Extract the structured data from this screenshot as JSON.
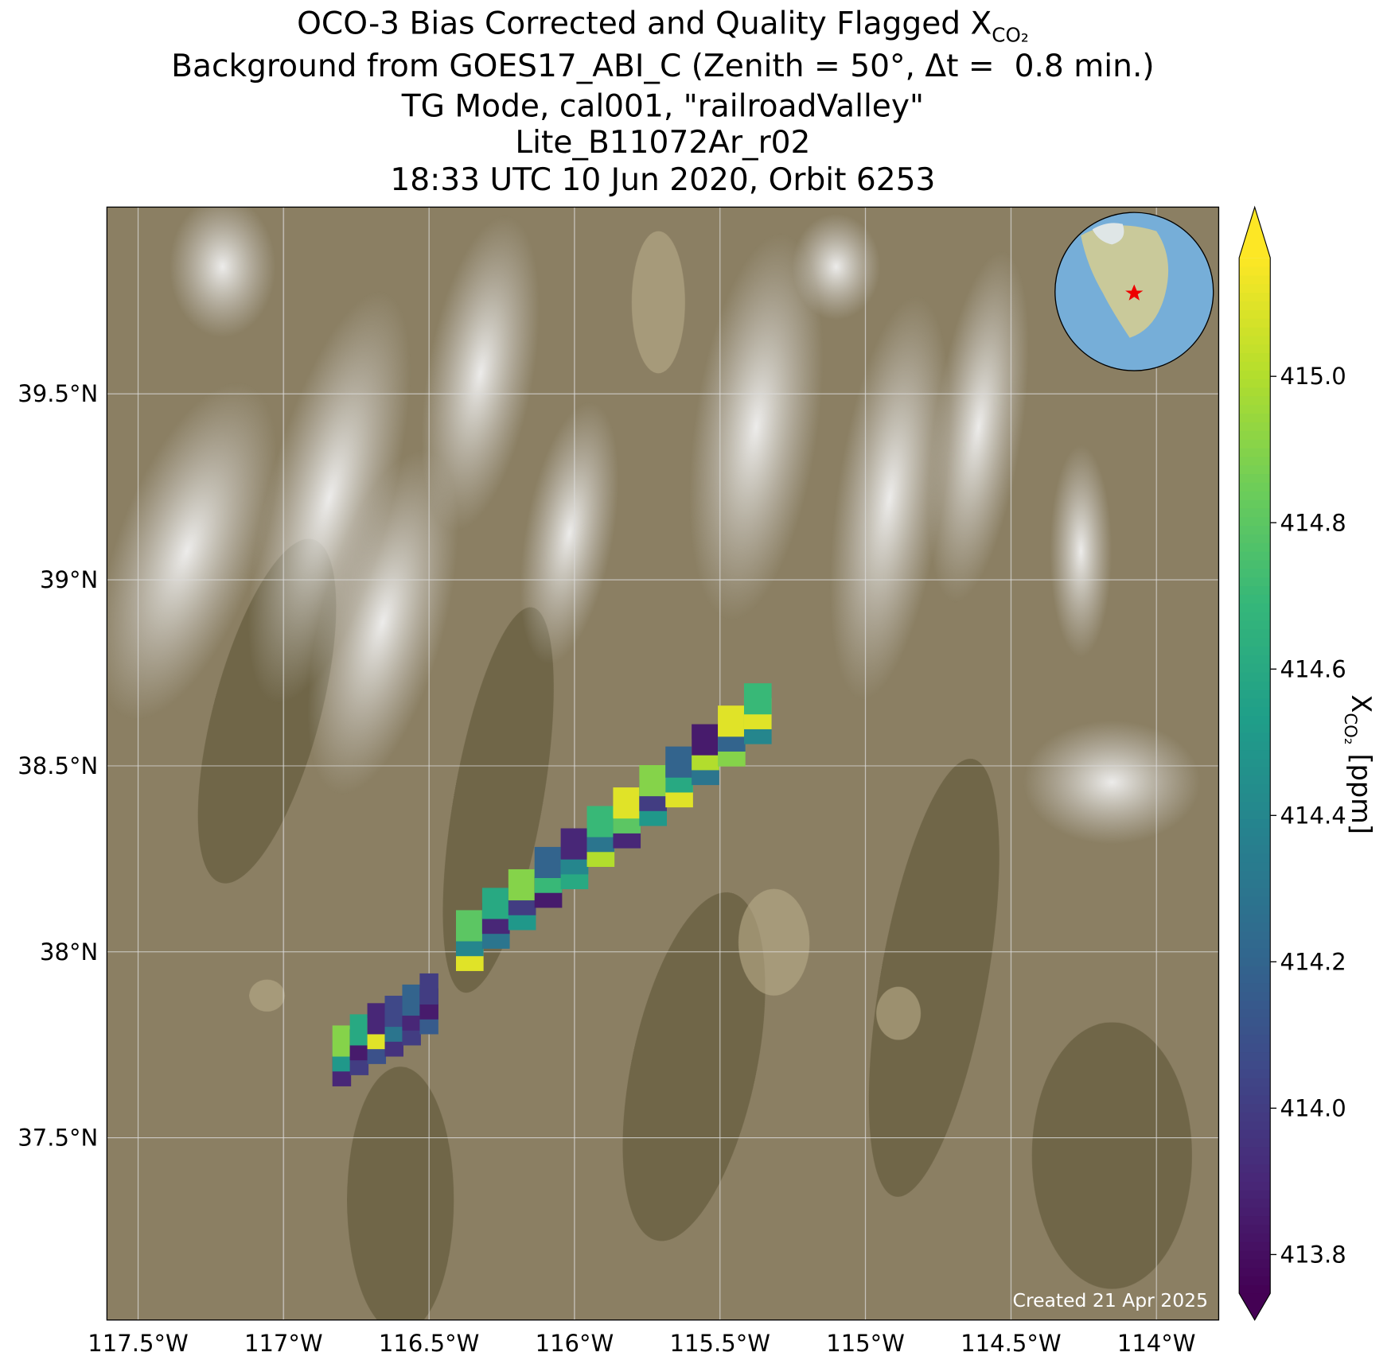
{
  "chart_data": {
    "type": "map",
    "title": [
      "OCO-3 Bias Corrected and Quality Flagged X",
      "Background from GOES17_ABI_C (Zenith = 50°, Δt =  0.8 min.)",
      "TG Mode, cal001, \"railroadValley\"",
      "Lite_B11072Ar_r02",
      "18:33 UTC 10 Jun 2020, Orbit 6253"
    ],
    "title_subscript": "CO₂",
    "xlim": [
      -117.607,
      -113.786
    ],
    "ylim": [
      37.01,
      40.002
    ],
    "xticks": [
      {
        "value": -117.5,
        "label": "117.5°W"
      },
      {
        "value": -117,
        "label": "117°W"
      },
      {
        "value": -116.5,
        "label": "116.5°W"
      },
      {
        "value": -116,
        "label": "116°W"
      },
      {
        "value": -115.5,
        "label": "115.5°W"
      },
      {
        "value": -115,
        "label": "115°W"
      },
      {
        "value": -114.5,
        "label": "114.5°W"
      },
      {
        "value": -114,
        "label": "114°W"
      }
    ],
    "yticks": [
      {
        "value": 37.5,
        "label": "37.5°N"
      },
      {
        "value": 38,
        "label": "38°N"
      },
      {
        "value": 38.5,
        "label": "38.5°N"
      },
      {
        "value": 39,
        "label": "39°N"
      },
      {
        "value": 39.5,
        "label": "39.5°N"
      }
    ],
    "grid": true,
    "colormap": "viridis",
    "clim": [
      413.747,
      415.162
    ],
    "colorbar_ticks": [
      {
        "value": 413.8,
        "label": "413.8"
      },
      {
        "value": 414,
        "label": "414.0"
      },
      414.2,
      414.4,
      414.6,
      414.8,
      {
        "value": 415,
        "label": "415.0"
      }
    ],
    "colorbar_label": "X",
    "colorbar_label_subscript": "CO₂",
    "colorbar_label_unit": "[ppm]",
    "footnote": "Created 21 Apr 2025",
    "lon": [
      -116.8,
      -116.8,
      -116.8,
      -116.74,
      -116.74,
      -116.74,
      -116.68,
      -116.68,
      -116.68,
      -116.62,
      -116.62,
      -116.62,
      -116.56,
      -116.56,
      -116.56,
      -116.5,
      -116.5,
      -116.5,
      -116.36,
      -116.36,
      -116.36,
      -116.27,
      -116.27,
      -116.27,
      -116.18,
      -116.18,
      -116.18,
      -116.09,
      -116.09,
      -116.09,
      -116.0,
      -116.0,
      -116.0,
      -115.91,
      -115.91,
      -115.91,
      -115.82,
      -115.82,
      -115.82,
      -115.73,
      -115.73,
      -115.73,
      -115.64,
      -115.64,
      -115.64,
      -115.55,
      -115.55,
      -115.55,
      -115.46,
      -115.46,
      -115.46,
      -115.37,
      -115.37,
      -115.37
    ],
    "lat": [
      37.68,
      37.72,
      37.76,
      37.71,
      37.75,
      37.79,
      37.74,
      37.78,
      37.82,
      37.76,
      37.8,
      37.84,
      37.79,
      37.83,
      37.87,
      37.82,
      37.86,
      37.9,
      37.99,
      38.03,
      38.07,
      38.05,
      38.09,
      38.13,
      38.1,
      38.14,
      38.18,
      38.16,
      38.2,
      38.24,
      38.21,
      38.25,
      38.29,
      38.27,
      38.31,
      38.35,
      38.32,
      38.36,
      38.4,
      38.38,
      38.42,
      38.46,
      38.43,
      38.47,
      38.51,
      38.49,
      38.53,
      38.57,
      38.54,
      38.58,
      38.62,
      38.6,
      38.64,
      38.68
    ],
    "values": [
      413.9,
      414.5,
      414.9,
      414.0,
      413.85,
      414.6,
      414.1,
      415.1,
      413.9,
      413.95,
      414.3,
      414.05,
      414.0,
      413.9,
      414.2,
      414.15,
      413.85,
      414.0,
      415.1,
      414.4,
      414.8,
      414.3,
      413.9,
      414.6,
      414.5,
      414.0,
      414.9,
      413.85,
      414.7,
      414.2,
      414.6,
      414.4,
      413.9,
      415.0,
      414.3,
      414.7,
      413.9,
      414.8,
      415.1,
      414.5,
      414.0,
      414.9,
      415.1,
      414.6,
      414.2,
      414.3,
      415.0,
      413.85,
      414.9,
      414.2,
      415.1,
      414.4,
      415.1,
      414.7
    ]
  }
}
